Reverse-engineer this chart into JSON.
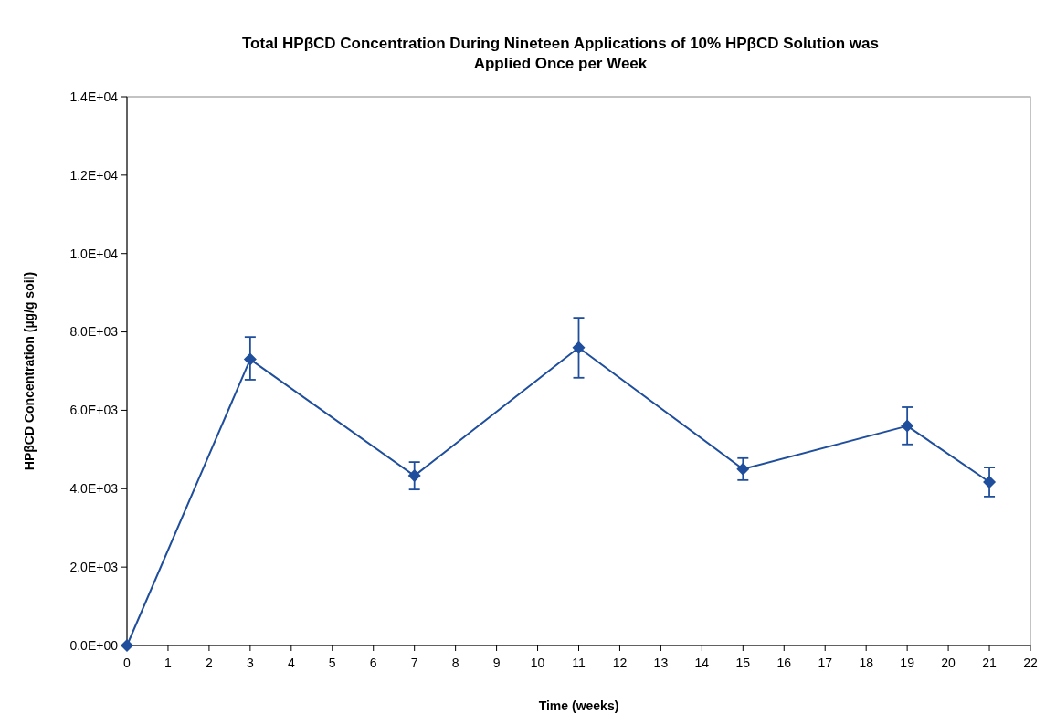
{
  "chart_data": {
    "type": "line",
    "title": "Total HPβCD Concentration During Nineteen Applications of 10% HPβCD Solution was\nApplied Once per Week",
    "xlabel": "Time (weeks)",
    "ylabel": "HPβCD Concentration (µg/g soil)",
    "x": [
      0,
      3,
      7,
      11,
      15,
      19,
      21
    ],
    "series": [
      {
        "color": "#1f4e9c",
        "values": [
          0,
          7300,
          4330,
          7600,
          4500,
          5600,
          4170
        ],
        "errors": [
          null,
          [
            6780,
            7870
          ],
          [
            3980,
            4680
          ],
          [
            6830,
            8360
          ],
          [
            4220,
            4780
          ],
          [
            5130,
            6080
          ],
          [
            3800,
            4540
          ]
        ]
      }
    ],
    "xlim": [
      0,
      22
    ],
    "xticks": [
      0,
      1,
      2,
      3,
      4,
      5,
      6,
      7,
      8,
      9,
      10,
      11,
      12,
      13,
      14,
      15,
      16,
      17,
      18,
      19,
      20,
      21,
      22
    ],
    "ylim": [
      0,
      14000
    ],
    "yticks": [
      {
        "value": 0,
        "label": "0.0E+00"
      },
      {
        "value": 2000,
        "label": "2.0E+03"
      },
      {
        "value": 4000,
        "label": "4.0E+03"
      },
      {
        "value": 6000,
        "label": "6.0E+03"
      },
      {
        "value": 8000,
        "label": "8.0E+03"
      },
      {
        "value": 10000,
        "label": "1.0E+04"
      },
      {
        "value": 12000,
        "label": "1.2E+04"
      },
      {
        "value": 14000,
        "label": "1.4E+04"
      }
    ],
    "grid": false,
    "marker": "diamond",
    "line_style": "solid"
  }
}
